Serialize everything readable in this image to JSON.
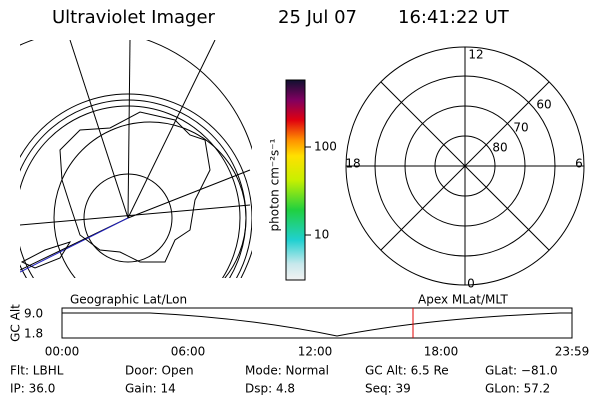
{
  "header": {
    "title": "Ultraviolet Imager",
    "date": "25 Jul 07",
    "time": "16:41:22 UT"
  },
  "colorbar": {
    "label": "photon cm⁻²s⁻¹",
    "ticks": [
      "100",
      "10"
    ]
  },
  "polar": {
    "mlt_labels": [
      "12",
      "18",
      "6",
      "0"
    ],
    "lat_labels": [
      "60",
      "70",
      "80"
    ]
  },
  "altitude": {
    "left_label": "Geographic Lat/Lon",
    "right_label": "Apex MLat/MLT",
    "axis_label": "GC Alt",
    "yticks": [
      "9.0",
      "1.8"
    ],
    "xticks": [
      "00:00",
      "06:00",
      "12:00",
      "18:00",
      "23:59"
    ]
  },
  "footer": {
    "rows": [
      [
        "Flt: LBHL",
        "Door: Open",
        "Mode: Normal",
        "GC Alt: 6.5 Re",
        "GLat: −81.0"
      ],
      [
        "IP: 36.0",
        "Gain: 14",
        "Dsp:    4.8",
        "Seq: 39",
        "GLon: 57.2"
      ]
    ]
  }
}
